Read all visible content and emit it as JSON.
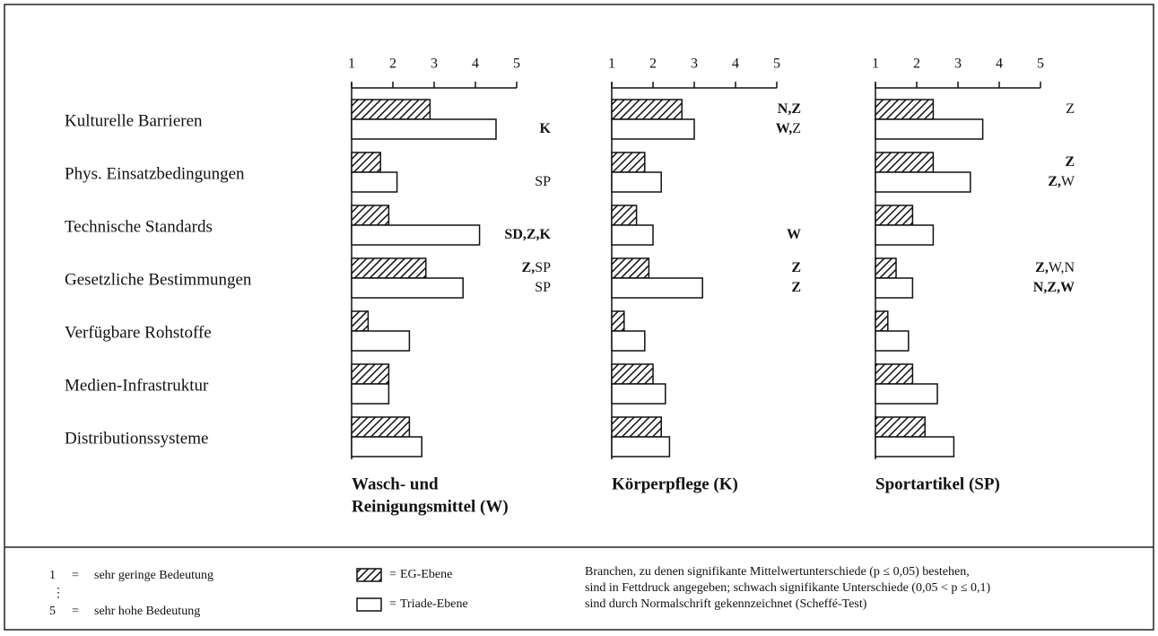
{
  "row_labels": [
    "Kulturelle Barrieren",
    "Phys. Einsatzbedingungen",
    "Technische Standards",
    "Gesetzliche Bestimmungen",
    "Verfügbare Rohstoffe",
    "Medien-Infrastruktur",
    "Distributionssysteme"
  ],
  "chart_data": [
    {
      "type": "bar",
      "orientation": "horizontal",
      "title_lines": [
        "Wasch- und",
        "Reinigungsmittel (W)"
      ],
      "xlim": [
        1,
        5
      ],
      "xticks": [
        1,
        2,
        3,
        4,
        5
      ],
      "series": [
        {
          "fill": "hatch",
          "values": [
            2.9,
            1.7,
            1.9,
            2.8,
            1.4,
            1.9,
            2.4
          ],
          "annotations": [
            null,
            null,
            null,
            [
              {
                "text": "Z,",
                "bold": true
              },
              {
                "text": "SP",
                "bold": false
              }
            ],
            null,
            null,
            null
          ]
        },
        {
          "fill": "white",
          "values": [
            4.5,
            2.1,
            4.1,
            3.7,
            2.4,
            1.9,
            2.7
          ],
          "annotations": [
            [
              {
                "text": "K",
                "bold": true
              }
            ],
            [
              {
                "text": "SP",
                "bold": false
              }
            ],
            [
              {
                "text": "SD,Z,K",
                "bold": true
              }
            ],
            [
              {
                "text": "SP",
                "bold": false
              }
            ],
            null,
            null,
            null
          ]
        }
      ]
    },
    {
      "type": "bar",
      "orientation": "horizontal",
      "title_lines": [
        "Körperpflege (K)"
      ],
      "xlim": [
        1,
        5
      ],
      "xticks": [
        1,
        2,
        3,
        4,
        5
      ],
      "series": [
        {
          "fill": "hatch",
          "values": [
            2.7,
            1.8,
            1.6,
            1.9,
            1.3,
            2.0,
            2.2
          ],
          "annotations": [
            [
              {
                "text": "N,Z",
                "bold": true
              }
            ],
            null,
            null,
            [
              {
                "text": "Z",
                "bold": true
              }
            ],
            null,
            null,
            null
          ]
        },
        {
          "fill": "white",
          "values": [
            3.0,
            2.2,
            2.0,
            3.2,
            1.8,
            2.3,
            2.4
          ],
          "annotations": [
            [
              {
                "text": "W,",
                "bold": true
              },
              {
                "text": "Z",
                "bold": false
              }
            ],
            null,
            [
              {
                "text": "W",
                "bold": true
              }
            ],
            [
              {
                "text": "Z",
                "bold": true
              }
            ],
            null,
            null,
            null
          ]
        }
      ]
    },
    {
      "type": "bar",
      "orientation": "horizontal",
      "title_lines": [
        "Sportartikel (SP)"
      ],
      "xlim": [
        1,
        5
      ],
      "xticks": [
        1,
        2,
        3,
        4,
        5
      ],
      "series": [
        {
          "fill": "hatch",
          "values": [
            2.4,
            2.4,
            1.9,
            1.5,
            1.3,
            1.9,
            2.2
          ],
          "annotations": [
            [
              {
                "text": "Z",
                "bold": false
              }
            ],
            [
              {
                "text": "Z",
                "bold": true
              }
            ],
            null,
            [
              {
                "text": "Z,",
                "bold": true
              },
              {
                "text": "W,N",
                "bold": false
              }
            ],
            null,
            null,
            null
          ]
        },
        {
          "fill": "white",
          "values": [
            3.6,
            3.3,
            2.4,
            1.9,
            1.8,
            2.5,
            2.9
          ],
          "annotations": [
            null,
            [
              {
                "text": "Z,",
                "bold": true
              },
              {
                "text": "W",
                "bold": false
              }
            ],
            null,
            [
              {
                "text": "N,Z,W",
                "bold": true
              }
            ],
            null,
            null,
            null
          ]
        }
      ]
    }
  ],
  "legend": {
    "sep": "=",
    "series": [
      {
        "name": "EG-Ebene",
        "fill": "hatch"
      },
      {
        "name": "Triade-Ebene",
        "fill": "white"
      }
    ]
  },
  "scale_legend": {
    "sep": "=",
    "dots": "⋮",
    "items": [
      {
        "key": "1",
        "text": "sehr geringe Bedeutung"
      },
      {
        "key": "5",
        "text": "sehr hohe Bedeutung"
      }
    ]
  },
  "note_lines": [
    "Branchen, zu denen signifikante Mittelwertunterschiede (p ≤ 0,05) bestehen,",
    "sind in Fettdruck angegeben; schwach signifikante Unterschiede (0,05 < p ≤ 0,1)",
    "sind durch Normalschrift gekennzeichnet (Scheffé-Test)"
  ]
}
